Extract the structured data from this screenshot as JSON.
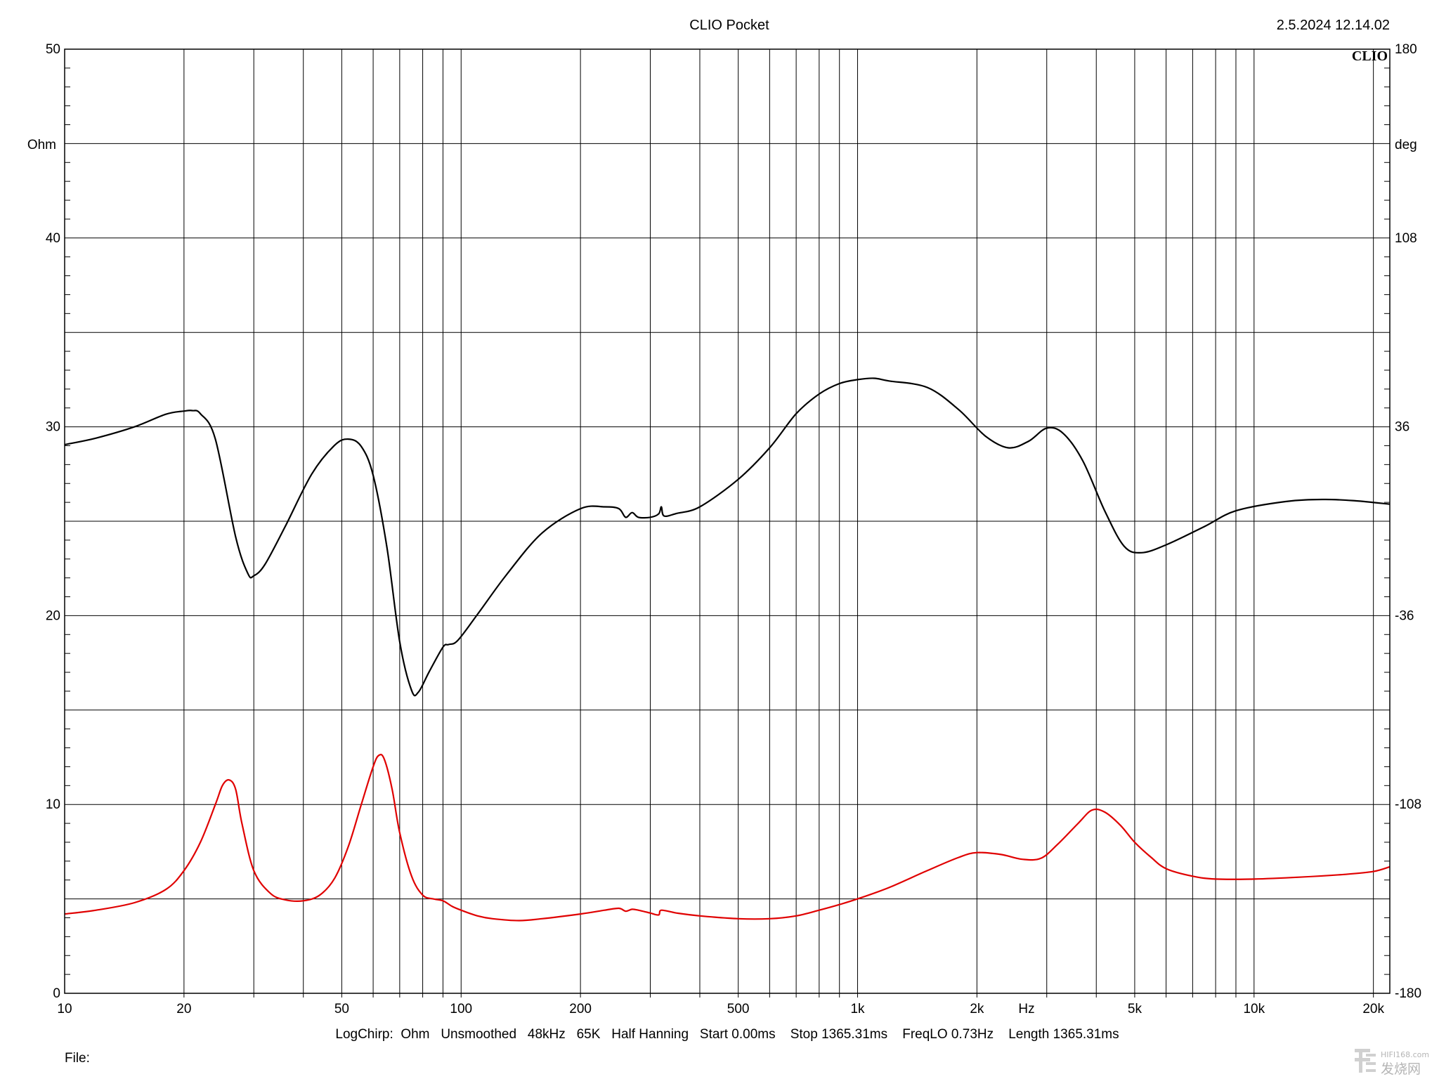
{
  "header": {
    "title": "CLIO Pocket",
    "timestamp": "2.5.2024 12.14.02",
    "logo": "CLIO"
  },
  "footer": {
    "settings": "LogChirp:  Ohm   Unsmoothed   48kHz   65K   Half Hanning   Start 0.00ms    Stop 1365.31ms    FreqLO 0.73Hz    Length 1365.31ms",
    "file_label": "File:"
  },
  "watermark": {
    "site": "HIFI168.com",
    "name": "发烧网"
  },
  "chart_data": {
    "type": "line",
    "x_scale": "log",
    "xlim": [
      10,
      22000
    ],
    "ylim": [
      0,
      50
    ],
    "y2lim": [
      -180,
      180
    ],
    "ylabel": "Ohm",
    "y2label": "deg",
    "xunit": "Hz",
    "grid": true,
    "x_ticks": [
      {
        "v": 10,
        "label": "10"
      },
      {
        "v": 20,
        "label": "20"
      },
      {
        "v": 50,
        "label": "50"
      },
      {
        "v": 100,
        "label": "100"
      },
      {
        "v": 200,
        "label": "200"
      },
      {
        "v": 500,
        "label": "500"
      },
      {
        "v": 1000,
        "label": "1k"
      },
      {
        "v": 2000,
        "label": "2k"
      },
      {
        "v": 5000,
        "label": "5k"
      },
      {
        "v": 10000,
        "label": "10k"
      },
      {
        "v": 20000,
        "label": "20k"
      }
    ],
    "y_ticks": [
      {
        "v": 0,
        "label": "0"
      },
      {
        "v": 10,
        "label": "10"
      },
      {
        "v": 20,
        "label": "20"
      },
      {
        "v": 30,
        "label": "30"
      },
      {
        "v": 40,
        "label": "40"
      },
      {
        "v": 50,
        "label": "50"
      }
    ],
    "y2_ticks": [
      {
        "v": -180,
        "label": "-180"
      },
      {
        "v": -108,
        "label": "-108"
      },
      {
        "v": -36,
        "label": "-36"
      },
      {
        "v": 36,
        "label": "36"
      },
      {
        "v": 108,
        "label": "108"
      },
      {
        "v": 180,
        "label": "180"
      }
    ],
    "series": [
      {
        "color": "#000000",
        "axis": "y2",
        "points": [
          [
            10,
            29.2
          ],
          [
            12,
            31.7
          ],
          [
            15,
            36.0
          ],
          [
            18,
            40.8
          ],
          [
            20,
            42.0
          ],
          [
            21,
            42.2
          ],
          [
            22,
            41.0
          ],
          [
            24,
            31.3
          ],
          [
            27,
            -6.0
          ],
          [
            29,
            -20.0
          ],
          [
            30,
            -20.8
          ],
          [
            32,
            -16.5
          ],
          [
            36,
            -2.0
          ],
          [
            42,
            18.0
          ],
          [
            48,
            29.0
          ],
          [
            52,
            31.3
          ],
          [
            56,
            28.5
          ],
          [
            60,
            17.5
          ],
          [
            65,
            -10.0
          ],
          [
            70,
            -46.0
          ],
          [
            75,
            -64.5
          ],
          [
            78,
            -65.2
          ],
          [
            83,
            -57.5
          ],
          [
            90,
            -48.0
          ],
          [
            93,
            -47.0
          ],
          [
            98,
            -45.5
          ],
          [
            110,
            -35.5
          ],
          [
            130,
            -20.5
          ],
          [
            160,
            -4.5
          ],
          [
            200,
            4.8
          ],
          [
            230,
            5.5
          ],
          [
            250,
            4.8
          ],
          [
            260,
            1.5
          ],
          [
            270,
            3.3
          ],
          [
            280,
            1.5
          ],
          [
            300,
            1.5
          ],
          [
            315,
            2.8
          ],
          [
            320,
            5.5
          ],
          [
            325,
            2.0
          ],
          [
            350,
            3.0
          ],
          [
            400,
            5.5
          ],
          [
            500,
            16.0
          ],
          [
            600,
            28.0
          ],
          [
            700,
            41.0
          ],
          [
            800,
            48.5
          ],
          [
            900,
            52.5
          ],
          [
            1000,
            54.0
          ],
          [
            1100,
            54.5
          ],
          [
            1200,
            53.5
          ],
          [
            1500,
            51.0
          ],
          [
            1800,
            42.5
          ],
          [
            2100,
            32.5
          ],
          [
            2400,
            28.0
          ],
          [
            2700,
            30.5
          ],
          [
            3000,
            35.5
          ],
          [
            3300,
            33.5
          ],
          [
            3700,
            23.0
          ],
          [
            4200,
            4.0
          ],
          [
            4700,
            -9.5
          ],
          [
            5200,
            -12.0
          ],
          [
            6000,
            -9.0
          ],
          [
            7500,
            -2.0
          ],
          [
            9000,
            4.0
          ],
          [
            12000,
            7.5
          ],
          [
            15000,
            8.3
          ],
          [
            18000,
            7.8
          ],
          [
            22000,
            6.5
          ]
        ]
      },
      {
        "color": "#e00000",
        "axis": "y",
        "points": [
          [
            10,
            4.2
          ],
          [
            12,
            4.4
          ],
          [
            15,
            4.8
          ],
          [
            18,
            5.5
          ],
          [
            20,
            6.5
          ],
          [
            22,
            8.0
          ],
          [
            24,
            10.0
          ],
          [
            25,
            11.0
          ],
          [
            26,
            11.3
          ],
          [
            27,
            10.8
          ],
          [
            28,
            9.0
          ],
          [
            30,
            6.5
          ],
          [
            33,
            5.3
          ],
          [
            36,
            4.95
          ],
          [
            40,
            4.9
          ],
          [
            44,
            5.2
          ],
          [
            48,
            6.1
          ],
          [
            52,
            7.8
          ],
          [
            56,
            10.0
          ],
          [
            60,
            12.0
          ],
          [
            62,
            12.6
          ],
          [
            64,
            12.4
          ],
          [
            67,
            10.8
          ],
          [
            70,
            8.5
          ],
          [
            75,
            6.2
          ],
          [
            80,
            5.2
          ],
          [
            85,
            5.0
          ],
          [
            90,
            4.9
          ],
          [
            95,
            4.6
          ],
          [
            100,
            4.4
          ],
          [
            110,
            4.1
          ],
          [
            120,
            3.95
          ],
          [
            140,
            3.85
          ],
          [
            160,
            3.95
          ],
          [
            200,
            4.2
          ],
          [
            230,
            4.4
          ],
          [
            250,
            4.5
          ],
          [
            260,
            4.35
          ],
          [
            270,
            4.45
          ],
          [
            280,
            4.4
          ],
          [
            300,
            4.25
          ],
          [
            315,
            4.15
          ],
          [
            320,
            4.4
          ],
          [
            350,
            4.25
          ],
          [
            400,
            4.1
          ],
          [
            500,
            3.95
          ],
          [
            600,
            3.95
          ],
          [
            700,
            4.1
          ],
          [
            800,
            4.4
          ],
          [
            900,
            4.7
          ],
          [
            1000,
            5.0
          ],
          [
            1200,
            5.6
          ],
          [
            1500,
            6.5
          ],
          [
            1800,
            7.2
          ],
          [
            2000,
            7.45
          ],
          [
            2300,
            7.35
          ],
          [
            2600,
            7.1
          ],
          [
            2900,
            7.15
          ],
          [
            3200,
            7.9
          ],
          [
            3600,
            9.0
          ],
          [
            3900,
            9.7
          ],
          [
            4200,
            9.6
          ],
          [
            4600,
            8.9
          ],
          [
            5000,
            8.0
          ],
          [
            5500,
            7.2
          ],
          [
            6000,
            6.6
          ],
          [
            7000,
            6.2
          ],
          [
            8000,
            6.05
          ],
          [
            10000,
            6.05
          ],
          [
            13000,
            6.15
          ],
          [
            17000,
            6.3
          ],
          [
            20000,
            6.45
          ],
          [
            22000,
            6.7
          ]
        ]
      }
    ]
  }
}
